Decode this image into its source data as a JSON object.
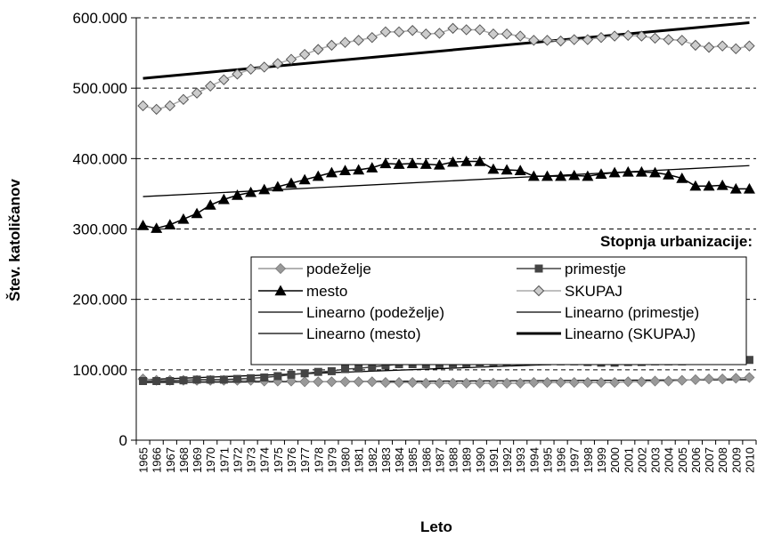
{
  "chart_data": {
    "type": "line",
    "title": "",
    "xlabel": "Leto",
    "ylabel": "Štev. katoličanov",
    "ylim": [
      0,
      600000
    ],
    "y_ticks": [
      "0",
      "100.000",
      "200.000",
      "300.000",
      "400.000",
      "500.000",
      "600.000"
    ],
    "y_tick_values": [
      0,
      100000,
      200000,
      300000,
      400000,
      500000,
      600000
    ],
    "grid": "horizontal-dashed",
    "x": [
      1965,
      1966,
      1967,
      1968,
      1969,
      1970,
      1971,
      1972,
      1973,
      1974,
      1975,
      1976,
      1977,
      1978,
      1979,
      1980,
      1981,
      1982,
      1983,
      1984,
      1985,
      1986,
      1987,
      1988,
      1989,
      1990,
      1991,
      1992,
      1993,
      1994,
      1995,
      1996,
      1997,
      1998,
      1999,
      2000,
      2001,
      2002,
      2003,
      2004,
      2005,
      2006,
      2007,
      2008,
      2009,
      2010
    ],
    "legend_title": "Stopnja urbanizacije:",
    "legend_position": "center-right",
    "series": [
      {
        "name": "podeželje",
        "color": "#999999",
        "marker": "diamond",
        "values": [
          87000,
          85000,
          85000,
          85000,
          85000,
          85000,
          85000,
          85000,
          85000,
          84000,
          84000,
          84000,
          83000,
          83000,
          83000,
          83000,
          83000,
          83000,
          82000,
          82000,
          82000,
          81000,
          81000,
          81000,
          81000,
          81000,
          81000,
          81000,
          81000,
          82000,
          82000,
          82000,
          82000,
          82000,
          82000,
          82000,
          83000,
          83000,
          84000,
          84000,
          85000,
          86000,
          87000,
          87000,
          88000,
          89000
        ]
      },
      {
        "name": "primestje",
        "color": "#444444",
        "marker": "square",
        "values": [
          84000,
          84000,
          84000,
          85000,
          86000,
          86000,
          86000,
          87000,
          88000,
          89000,
          91000,
          93000,
          95000,
          97000,
          98000,
          101000,
          102000,
          104000,
          106000,
          108000,
          108000,
          108000,
          108000,
          109000,
          109000,
          109000,
          111000,
          111000,
          112000,
          112000,
          112000,
          112000,
          112000,
          111000,
          110000,
          110000,
          111000,
          111000,
          112000,
          112000,
          112000,
          113000,
          113000,
          113000,
          114000,
          114000
        ]
      },
      {
        "name": "mesto",
        "color": "#000000",
        "marker": "triangle",
        "values": [
          305000,
          301000,
          306000,
          314000,
          322000,
          334000,
          342000,
          348000,
          352000,
          356000,
          360000,
          365000,
          370000,
          375000,
          380000,
          383000,
          384000,
          387000,
          393000,
          392000,
          393000,
          392000,
          391000,
          395000,
          396000,
          396000,
          385000,
          384000,
          383000,
          375000,
          375000,
          375000,
          376000,
          375000,
          378000,
          380000,
          381000,
          381000,
          380000,
          377000,
          372000,
          361000,
          361000,
          362000,
          357000,
          357000
        ]
      },
      {
        "name": "SKUPAJ",
        "color": "#aaaaaa",
        "marker": "diamond-open",
        "values": [
          475000,
          470000,
          475000,
          484000,
          493000,
          503000,
          512000,
          520000,
          527000,
          530000,
          535000,
          541000,
          548000,
          555000,
          561000,
          565000,
          568000,
          572000,
          580000,
          580000,
          582000,
          577000,
          578000,
          585000,
          583000,
          583000,
          577000,
          577000,
          574000,
          568000,
          568000,
          567000,
          569000,
          569000,
          572000,
          574000,
          575000,
          574000,
          571000,
          569000,
          568000,
          561000,
          558000,
          560000,
          556000,
          560000
        ]
      }
    ],
    "trendlines": [
      {
        "name": "Linearno (podeželje)",
        "style": "thin",
        "from": [
          1965,
          82000
        ],
        "to": [
          2010,
          86000
        ]
      },
      {
        "name": "Linearno (primestje)",
        "style": "thin",
        "from": [
          1965,
          86000
        ],
        "to": [
          2010,
          118000
        ]
      },
      {
        "name": "Linearno (mesto)",
        "style": "thin",
        "from": [
          1965,
          346000
        ],
        "to": [
          2010,
          390000
        ]
      },
      {
        "name": "Linearno (SKUPAJ)",
        "style": "thick",
        "from": [
          1965,
          514000
        ],
        "to": [
          2010,
          593000
        ]
      }
    ]
  }
}
